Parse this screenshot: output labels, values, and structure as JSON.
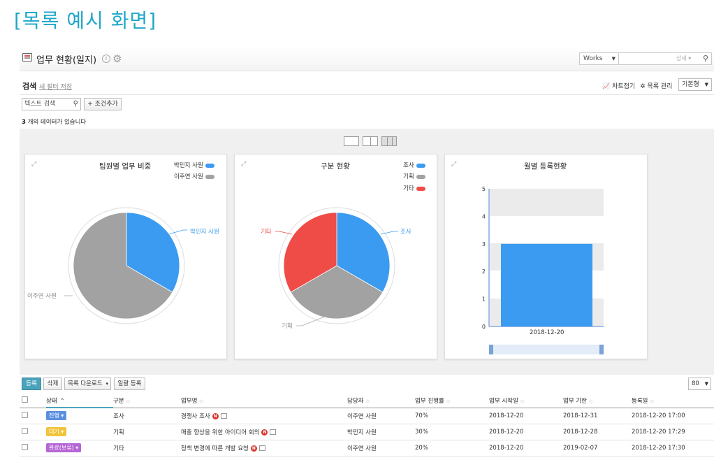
{
  "caption": "[목록 예시 화면]",
  "header": {
    "title": "업무 현황(일지)",
    "search_scope": "Works",
    "search_detail": "상세 ▾"
  },
  "searchbar": {
    "label": "검색",
    "save_filter": "새 필터 저장",
    "chart_toggle": "차트접기",
    "list_manage": "목록 관리",
    "view_mode": "기본형"
  },
  "filter": {
    "text_search_placeholder": "텍스트 검색",
    "add_condition": "+ 조건추가"
  },
  "count_text": {
    "count": "3",
    "suffix": " 개의 데이터가 있습니다"
  },
  "charts": [
    {
      "title": "팀원별 업무 비중",
      "legend": [
        {
          "name": "박민지 사원",
          "color": "#3b9bf0"
        },
        {
          "name": "이주연 사원",
          "color": "#a2a2a2"
        }
      ],
      "labels": [
        "박민지 사원",
        "이주연 사원"
      ]
    },
    {
      "title": "구분 현황",
      "legend": [
        {
          "name": "조사",
          "color": "#3b9bf0"
        },
        {
          "name": "기획",
          "color": "#a2a2a2"
        },
        {
          "name": "기타",
          "color": "#ef4b47"
        }
      ],
      "labels": [
        "조사",
        "기획",
        "기타"
      ]
    },
    {
      "title": "월별 등록현황",
      "ticks": [
        "5",
        "4",
        "3",
        "2",
        "1",
        "0"
      ],
      "x_label": "2018-12-20"
    }
  ],
  "chart_data": [
    {
      "type": "pie",
      "title": "팀원별 업무 비중",
      "categories": [
        "박민지 사원",
        "이주연 사원"
      ],
      "values": [
        1,
        2
      ],
      "colors": [
        "#3b9bf0",
        "#a2a2a2"
      ]
    },
    {
      "type": "pie",
      "title": "구분 현황",
      "categories": [
        "조사",
        "기획",
        "기타"
      ],
      "values": [
        1,
        1,
        1
      ],
      "colors": [
        "#3b9bf0",
        "#a2a2a2",
        "#ef4b47"
      ]
    },
    {
      "type": "bar",
      "title": "월별 등록현황",
      "categories": [
        "2018-12-20"
      ],
      "values": [
        3
      ],
      "ylim": [
        0,
        5
      ],
      "colors": [
        "#3b9bf0"
      ]
    }
  ],
  "toolbar": {
    "register": "등록",
    "delete": "삭제",
    "download": "목록 다운로드",
    "bulk_register": "일괄 등록",
    "page_size": "80"
  },
  "table": {
    "columns": [
      "상태",
      "구분",
      "업무명",
      "담당자",
      "업무 진행률",
      "업무 시작일",
      "업무 기한",
      "등록일"
    ],
    "rows": [
      {
        "status": "진행",
        "status_color": "#5b8fe0",
        "category": "조사",
        "name": "경쟁사 조사",
        "owner": "이주연 사원",
        "progress": "70%",
        "start": "2018-12-20",
        "due": "2018-12-31",
        "registered": "2018-12-20 17:00"
      },
      {
        "status": "대기",
        "status_color": "#f2c43c",
        "category": "기획",
        "name": "매출 향상을 위한 아이디어 회의",
        "owner": "박민지 사원",
        "progress": "30%",
        "start": "2018-12-20",
        "due": "2018-12-28",
        "registered": "2018-12-20 17:29"
      },
      {
        "status": "완료(보류)",
        "status_color": "#b566d6",
        "category": "기타",
        "name": "정책 변경에 따른 개발 요청",
        "owner": "이주연 사원",
        "progress": "20%",
        "start": "2018-12-20",
        "due": "2019-02-07",
        "registered": "2018-12-20 17:30"
      }
    ]
  }
}
